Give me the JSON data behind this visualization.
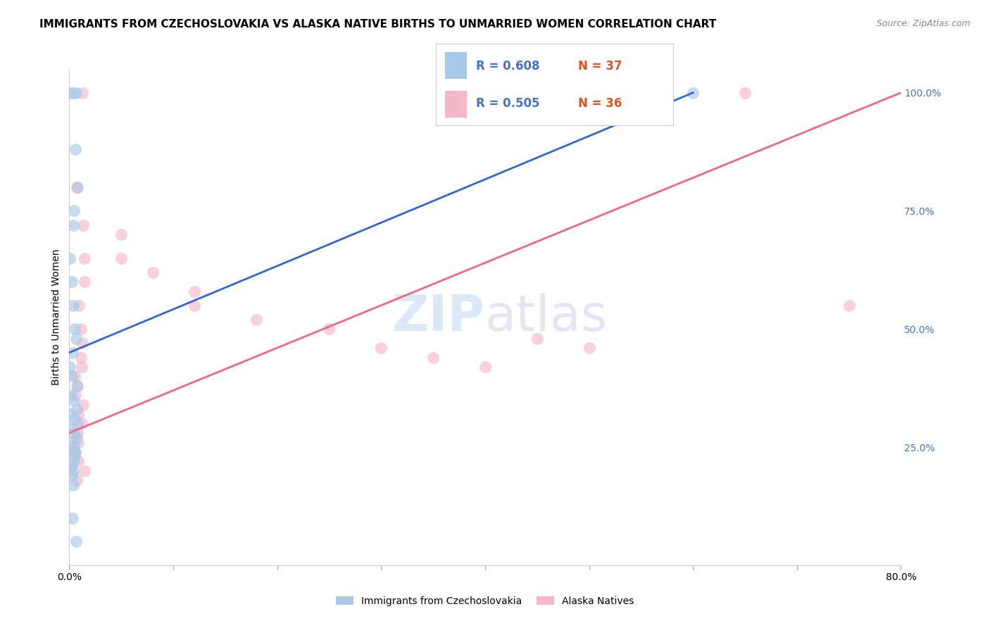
{
  "title": "IMMIGRANTS FROM CZECHOSLOVAKIA VS ALASKA NATIVE BIRTHS TO UNMARRIED WOMEN CORRELATION CHART",
  "source": "Source: ZipAtlas.com",
  "ylabel_left": "Births to Unmarried Women",
  "legend_label1": "Immigrants from Czechoslovakia",
  "legend_label2": "Alaska Natives",
  "r1": 0.608,
  "n1": 37,
  "r2": 0.505,
  "n2": 36,
  "color_blue": "#a8c8e8",
  "color_pink": "#f4b8c8",
  "color_blue_line": "#3366cc",
  "color_pink_line": "#ee6688",
  "watermark_zip": "ZIP",
  "watermark_atlas": "atlas",
  "xmin": 0.0,
  "xmax": 80.0,
  "ymin": 0.0,
  "ymax": 105.0,
  "ytick_right": [
    25,
    50,
    75,
    100
  ],
  "ytick_right_labels": [
    "25.0%",
    "50.0%",
    "75.0%",
    "100.0%"
  ],
  "xtick_positions": [
    0,
    10,
    20,
    30,
    40,
    50,
    60,
    70,
    80
  ],
  "blue_dots_x": [
    0.0,
    0.0,
    0.0,
    0.0,
    0.0,
    0.0,
    0.0,
    0.0,
    0.0,
    0.0,
    0.0,
    0.0,
    0.0,
    0.0,
    0.0,
    0.0,
    0.0,
    0.0,
    0.0,
    0.0,
    0.0,
    0.0,
    0.0,
    0.0,
    0.0,
    0.0,
    0.0,
    0.0,
    0.0,
    0.0,
    0.0,
    0.0,
    0.0,
    0.0,
    0.0,
    0.0,
    60.0
  ],
  "blue_dots_y": [
    100.0,
    100.0,
    100.0,
    88.0,
    80.0,
    75.0,
    72.0,
    65.0,
    60.0,
    55.0,
    50.0,
    48.0,
    45.0,
    42.0,
    40.0,
    38.0,
    36.0,
    35.0,
    33.0,
    32.0,
    31.0,
    30.0,
    29.0,
    28.0,
    27.0,
    26.0,
    25.0,
    24.0,
    23.0,
    22.0,
    21.0,
    20.0,
    19.0,
    17.0,
    10.0,
    5.0,
    100.0
  ],
  "pink_dots_x": [
    0.0,
    0.0,
    0.0,
    0.0,
    0.0,
    0.0,
    0.0,
    0.0,
    0.0,
    0.0,
    0.0,
    0.0,
    0.0,
    0.0,
    0.0,
    0.0,
    0.0,
    0.0,
    0.0,
    0.0,
    0.0,
    0.0,
    5.0,
    5.0,
    8.0,
    12.0,
    12.0,
    18.0,
    25.0,
    30.0,
    35.0,
    40.0,
    45.0,
    50.0,
    65.0,
    75.0
  ],
  "pink_dots_y": [
    100.0,
    80.0,
    72.0,
    65.0,
    60.0,
    55.0,
    50.0,
    47.0,
    44.0,
    42.0,
    40.0,
    38.0,
    36.0,
    34.0,
    32.0,
    30.0,
    28.0,
    26.0,
    24.0,
    22.0,
    20.0,
    18.0,
    70.0,
    65.0,
    62.0,
    58.0,
    55.0,
    52.0,
    50.0,
    46.0,
    44.0,
    42.0,
    48.0,
    46.0,
    100.0,
    55.0
  ],
  "blue_trend_x": [
    0,
    60
  ],
  "blue_trend_y": [
    45,
    100
  ],
  "pink_trend_x": [
    0,
    80
  ],
  "pink_trend_y": [
    28,
    100
  ],
  "right_tick_color": "#4472c4",
  "grid_color": "#d0d0d0",
  "title_fontsize": 11,
  "axis_label_fontsize": 10,
  "tick_fontsize": 10
}
